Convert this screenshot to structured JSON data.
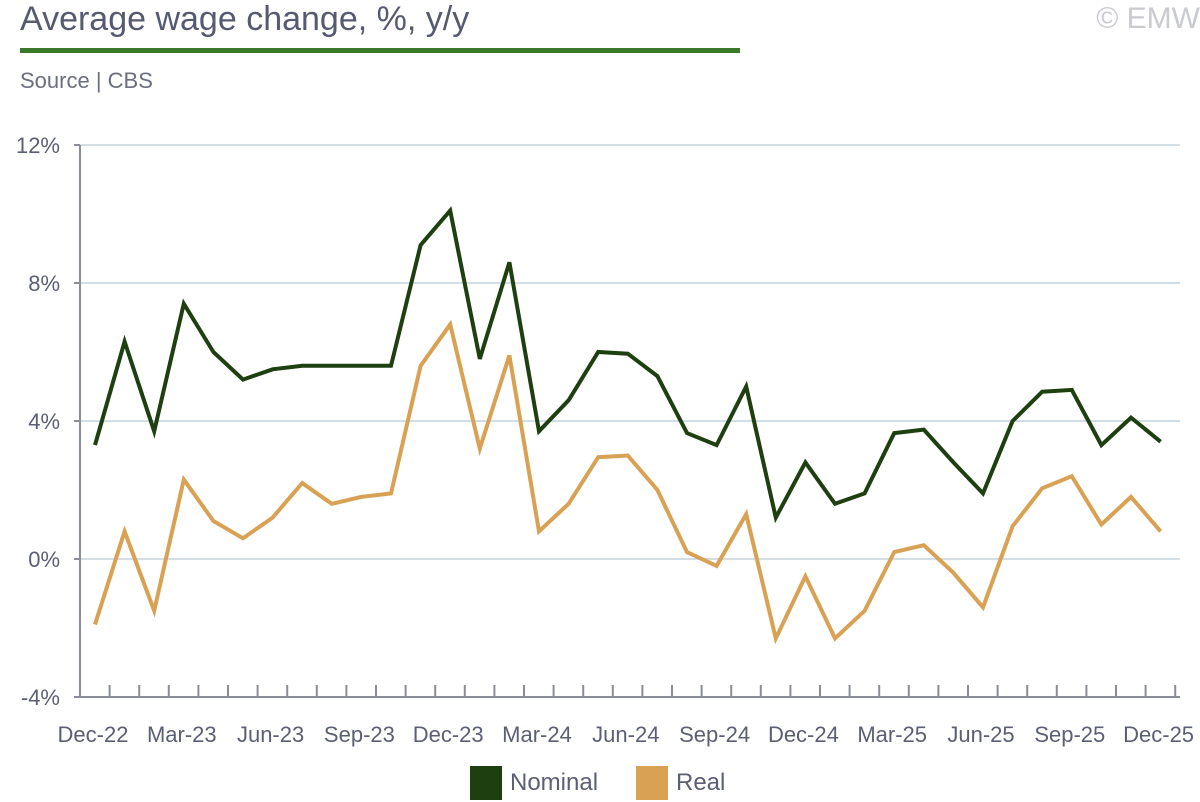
{
  "header": {
    "title": "Average wage change, %, y/y",
    "source": "Source | CBS",
    "copyright": "© EMW"
  },
  "colors": {
    "nominal": "#1e4010",
    "real": "#d9a154",
    "grid": "#d2dde6",
    "axis": "#8a8d99",
    "title_rule": "#3a7a2a"
  },
  "chart_data": {
    "type": "line",
    "title": "Average wage change, %, y/y",
    "xlabel": "",
    "ylabel": "",
    "ylim": [
      -4,
      12
    ],
    "yticks": [
      -4,
      0,
      4,
      8,
      12
    ],
    "ytick_labels": [
      "-4%",
      "0%",
      "4%",
      "8%",
      "12%"
    ],
    "grid": true,
    "legend_position": "bottom",
    "x": [
      "Dec-22",
      "Jan-23",
      "Feb-23",
      "Mar-23",
      "Apr-23",
      "May-23",
      "Jun-23",
      "Jul-23",
      "Aug-23",
      "Sep-23",
      "Oct-23",
      "Nov-23",
      "Dec-23",
      "Jan-24",
      "Feb-24",
      "Mar-24",
      "Apr-24",
      "May-24",
      "Jun-24",
      "Jul-24",
      "Aug-24",
      "Sep-24",
      "Oct-24",
      "Nov-24",
      "Dec-24",
      "Jan-25",
      "Feb-25",
      "Mar-25",
      "Apr-25",
      "May-25",
      "Jun-25",
      "Jul-25",
      "Aug-25",
      "Sep-25",
      "Oct-25",
      "Nov-25",
      "Dec-25"
    ],
    "xtick_labels": [
      "Dec-22",
      "Mar-23",
      "Jun-23",
      "Sep-23",
      "Dec-23",
      "Mar-24",
      "Jun-24",
      "Sep-24",
      "Dec-24",
      "Mar-25",
      "Jun-25",
      "Sep-25",
      "Dec-25"
    ],
    "series": [
      {
        "name": "Nominal",
        "values": [
          3.3,
          6.3,
          3.7,
          7.4,
          6.0,
          5.2,
          5.5,
          5.6,
          5.6,
          5.6,
          5.6,
          9.1,
          10.1,
          5.8,
          8.6,
          3.7,
          4.6,
          6.0,
          5.95,
          5.3,
          3.65,
          3.3,
          5.0,
          1.2,
          2.8,
          1.6,
          1.9,
          3.65,
          3.75,
          2.8,
          1.9,
          4.0,
          4.85,
          4.9,
          3.3,
          4.1,
          3.4
        ]
      },
      {
        "name": "Real",
        "values": [
          -1.9,
          0.8,
          -1.5,
          2.3,
          1.1,
          0.6,
          1.2,
          2.2,
          1.6,
          1.8,
          1.9,
          5.6,
          6.8,
          3.2,
          5.9,
          0.8,
          1.6,
          2.95,
          3.0,
          2.0,
          0.2,
          -0.2,
          1.3,
          -2.3,
          -0.5,
          -2.3,
          -1.5,
          0.2,
          0.4,
          -0.4,
          -1.4,
          0.95,
          2.05,
          2.4,
          1.0,
          1.8,
          0.8
        ]
      }
    ]
  }
}
